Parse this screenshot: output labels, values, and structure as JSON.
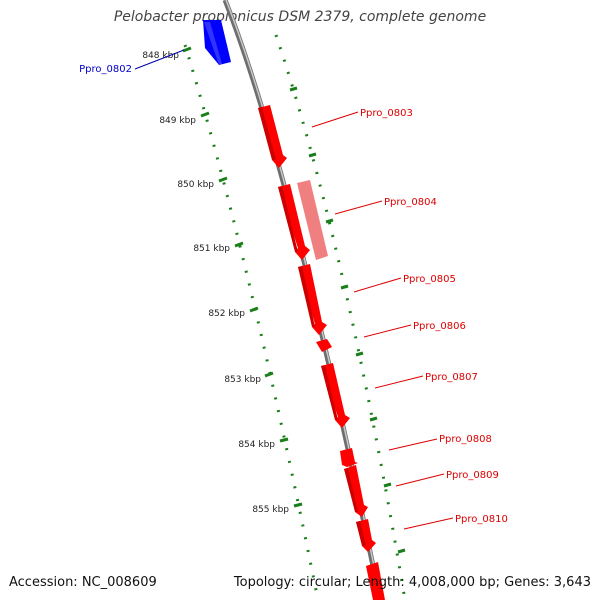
{
  "title": "Pelobacter propionicus DSM 2379, complete genome",
  "footer": {
    "accession": "Accession: NC_008609",
    "summary": "Topology: circular; Length: 4,008,000 bp; Genes: 3,643"
  },
  "ruler": {
    "color": "#1a7f1a",
    "labels": [
      "848 kbp",
      "849 kbp",
      "850 kbp",
      "851 kbp",
      "852 kbp",
      "853 kbp",
      "854 kbp",
      "855 kbp"
    ]
  },
  "backbone_color": "#8c8c8c",
  "genes": [
    {
      "name": "Ppro_0802",
      "strand": "-",
      "color": "#0000ff"
    },
    {
      "name": "Ppro_0803",
      "strand": "+",
      "color": "#ff0000"
    },
    {
      "name": "Ppro_0804",
      "strand": "+",
      "color": "#ff0000"
    },
    {
      "name": "Ppro_0805",
      "strand": "+",
      "color": "#ff0000"
    },
    {
      "name": "Ppro_0806",
      "strand": "+",
      "color": "#ff0000"
    },
    {
      "name": "Ppro_0807",
      "strand": "+",
      "color": "#ff0000"
    },
    {
      "name": "Ppro_0808",
      "strand": "+",
      "color": "#ff0000"
    },
    {
      "name": "Ppro_0809",
      "strand": "+",
      "color": "#ff0000"
    },
    {
      "name": "Ppro_0810",
      "strand": "+",
      "color": "#ff0000"
    }
  ]
}
